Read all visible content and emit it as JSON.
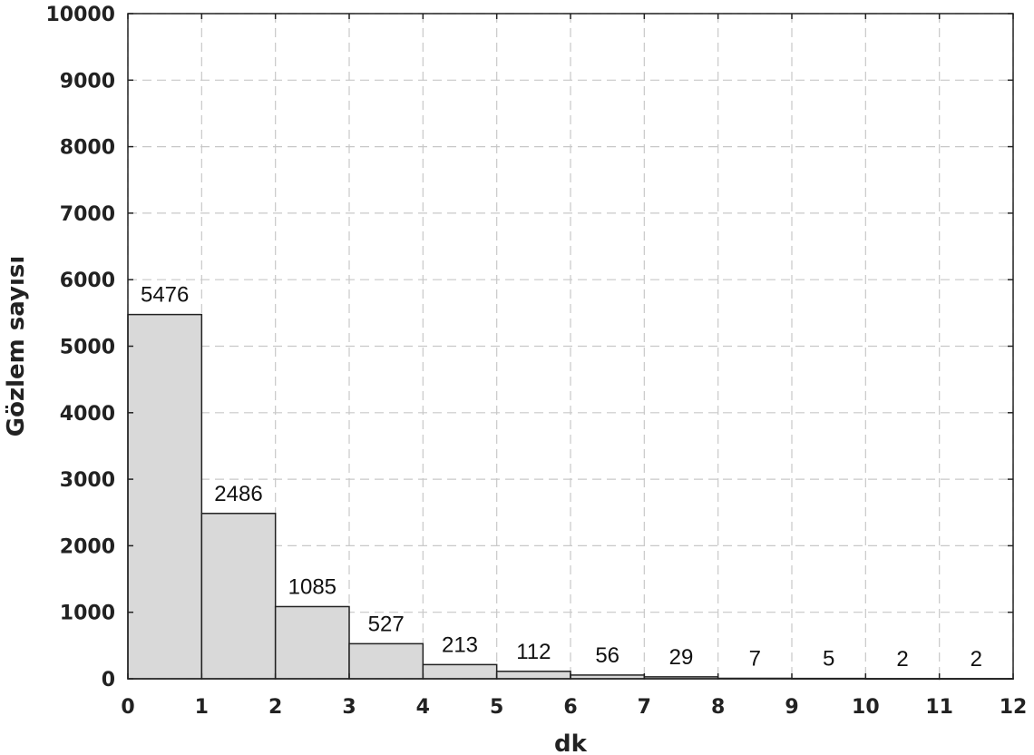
{
  "chart_data": {
    "type": "bar",
    "title": "",
    "xlabel": "dk",
    "ylabel": "Gözlem sayısı",
    "bin_edges": [
      0,
      1,
      2,
      3,
      4,
      5,
      6,
      7,
      8,
      9,
      10,
      11,
      12
    ],
    "values": [
      5476,
      2486,
      1085,
      527,
      213,
      112,
      56,
      29,
      7,
      5,
      2,
      2
    ],
    "data_labels": [
      "5476",
      "2486",
      "1085",
      "527",
      "213",
      "112",
      "56",
      "29",
      "7",
      "5",
      "2",
      "2"
    ],
    "xlim": [
      0,
      12
    ],
    "ylim": [
      0,
      10000
    ],
    "x_ticks": [
      "0",
      "1",
      "2",
      "3",
      "4",
      "5",
      "6",
      "7",
      "8",
      "9",
      "10",
      "11",
      "12"
    ],
    "y_ticks": [
      "0",
      "1000",
      "2000",
      "3000",
      "4000",
      "5000",
      "6000",
      "7000",
      "8000",
      "9000",
      "10000"
    ],
    "grid": true,
    "colors": {
      "bar_fill": "#d9d9d9",
      "bar_edge": "#222222",
      "grid": "#c8c8c8"
    }
  }
}
